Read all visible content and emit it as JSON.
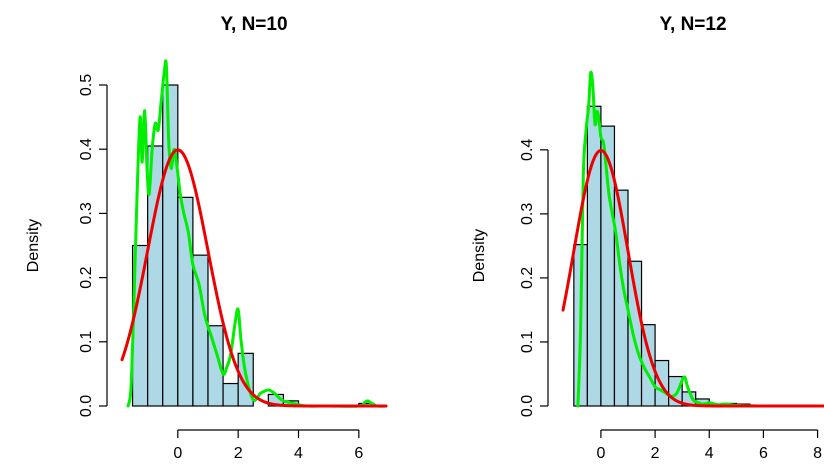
{
  "chart_data": [
    {
      "type": "histogram",
      "title": "Y, N=10",
      "xlabel": "",
      "ylabel": "Density",
      "xlim": [
        -1.85,
        6.9
      ],
      "ylim": [
        0,
        0.5
      ],
      "xticks": [
        0,
        2,
        4,
        6
      ],
      "yticks": [
        0.0,
        0.1,
        0.2,
        0.3,
        0.4,
        0.5
      ],
      "bin_width": 0.5,
      "bins": [
        {
          "x0": -1.5,
          "x1": -1.0,
          "density": 0.25
        },
        {
          "x0": -1.0,
          "x1": -0.5,
          "density": 0.405
        },
        {
          "x0": -0.5,
          "x1": 0.0,
          "density": 0.5
        },
        {
          "x0": 0.0,
          "x1": 0.5,
          "density": 0.325
        },
        {
          "x0": 0.5,
          "x1": 1.0,
          "density": 0.235
        },
        {
          "x0": 1.0,
          "x1": 1.5,
          "density": 0.125
        },
        {
          "x0": 1.5,
          "x1": 2.0,
          "density": 0.035
        },
        {
          "x0": 2.0,
          "x1": 2.5,
          "density": 0.082
        },
        {
          "x0": 2.5,
          "x1": 3.0,
          "density": 0.0
        },
        {
          "x0": 3.0,
          "x1": 3.5,
          "density": 0.018
        },
        {
          "x0": 3.5,
          "x1": 4.0,
          "density": 0.008
        },
        {
          "x0": 4.0,
          "x1": 4.5,
          "density": 0.0
        },
        {
          "x0": 4.5,
          "x1": 5.0,
          "density": 0.0
        },
        {
          "x0": 5.0,
          "x1": 5.5,
          "density": 0.0
        },
        {
          "x0": 5.5,
          "x1": 6.0,
          "density": 0.0
        },
        {
          "x0": 6.0,
          "x1": 6.5,
          "density": 0.004
        }
      ],
      "series": [
        {
          "kind": "kde",
          "color": "#00ee00",
          "x": [
            -1.65,
            -1.55,
            -1.45,
            -1.35,
            -1.25,
            -1.18,
            -1.1,
            -1.02,
            -0.95,
            -0.85,
            -0.75,
            -0.65,
            -0.55,
            -0.45,
            -0.38,
            -0.3,
            -0.22,
            -0.12,
            -0.02,
            0.08,
            0.2,
            0.35,
            0.5,
            0.7,
            0.9,
            1.1,
            1.3,
            1.5,
            1.62,
            1.75,
            1.9,
            2.0,
            2.1,
            2.25,
            2.5,
            2.75,
            3.0,
            3.2,
            3.35,
            3.5,
            3.75,
            4.0,
            4.3,
            5.0,
            6.0,
            6.2,
            6.3,
            6.4,
            6.6,
            6.9
          ],
          "y": [
            0.0,
            0.03,
            0.17,
            0.33,
            0.45,
            0.38,
            0.46,
            0.37,
            0.33,
            0.4,
            0.44,
            0.43,
            0.475,
            0.52,
            0.53,
            0.41,
            0.37,
            0.4,
            0.37,
            0.33,
            0.3,
            0.27,
            0.22,
            0.19,
            0.14,
            0.11,
            0.08,
            0.05,
            0.06,
            0.08,
            0.13,
            0.15,
            0.1,
            0.05,
            0.01,
            0.02,
            0.025,
            0.02,
            0.013,
            0.008,
            0.005,
            0.002,
            0.0,
            0.0,
            0.0,
            0.006,
            0.008,
            0.005,
            0.0,
            0.0
          ]
        },
        {
          "kind": "normal",
          "color": "#ee0000",
          "mean": 0,
          "sd": 1,
          "x_from": -1.85,
          "x_to": 6.9
        }
      ]
    },
    {
      "type": "histogram",
      "title": "Y, N=12",
      "xlabel": "",
      "ylabel": "Density",
      "xlim": [
        -1.4,
        8.2
      ],
      "ylim": [
        0,
        0.47
      ],
      "xticks": [
        0,
        2,
        4,
        6,
        8
      ],
      "yticks": [
        0.0,
        0.1,
        0.2,
        0.3,
        0.4
      ],
      "bin_width": 0.5,
      "bins": [
        {
          "x0": -1.0,
          "x1": -0.5,
          "density": 0.252
        },
        {
          "x0": -0.5,
          "x1": 0.0,
          "density": 0.468
        },
        {
          "x0": 0.0,
          "x1": 0.5,
          "density": 0.437
        },
        {
          "x0": 0.5,
          "x1": 1.0,
          "density": 0.337
        },
        {
          "x0": 1.0,
          "x1": 1.5,
          "density": 0.226
        },
        {
          "x0": 1.5,
          "x1": 2.0,
          "density": 0.127
        },
        {
          "x0": 2.0,
          "x1": 2.5,
          "density": 0.071
        },
        {
          "x0": 2.5,
          "x1": 3.0,
          "density": 0.046
        },
        {
          "x0": 3.0,
          "x1": 3.5,
          "density": 0.022
        },
        {
          "x0": 3.5,
          "x1": 4.0,
          "density": 0.011
        },
        {
          "x0": 4.0,
          "x1": 4.5,
          "density": 0.0
        },
        {
          "x0": 4.5,
          "x1": 5.0,
          "density": 0.004
        },
        {
          "x0": 5.0,
          "x1": 5.5,
          "density": 0.003
        }
      ],
      "series": [
        {
          "kind": "kde",
          "color": "#00ee00",
          "x": [
            -0.85,
            -0.75,
            -0.65,
            -0.55,
            -0.45,
            -0.38,
            -0.3,
            -0.22,
            -0.15,
            -0.08,
            0.0,
            0.1,
            0.2,
            0.3,
            0.42,
            0.55,
            0.7,
            0.85,
            1.0,
            1.2,
            1.4,
            1.6,
            1.8,
            2.0,
            2.2,
            2.4,
            2.6,
            2.8,
            3.0,
            3.1,
            3.2,
            3.4,
            3.6,
            3.8,
            4.0,
            4.3,
            4.6,
            5.0,
            6.0,
            7.0,
            8.0,
            8.3
          ],
          "y": [
            0.0,
            0.12,
            0.36,
            0.43,
            0.47,
            0.52,
            0.5,
            0.44,
            0.46,
            0.45,
            0.42,
            0.41,
            0.37,
            0.33,
            0.3,
            0.27,
            0.22,
            0.18,
            0.15,
            0.11,
            0.08,
            0.06,
            0.045,
            0.03,
            0.025,
            0.02,
            0.015,
            0.02,
            0.04,
            0.045,
            0.03,
            0.01,
            0.005,
            0.003,
            0.005,
            0.002,
            0.003,
            0.001,
            0.0,
            0.0,
            0.0,
            0.0
          ]
        },
        {
          "kind": "normal",
          "color": "#ee0000",
          "mean": 0,
          "sd": 1,
          "x_from": -1.4,
          "x_to": 8.2
        }
      ]
    }
  ]
}
